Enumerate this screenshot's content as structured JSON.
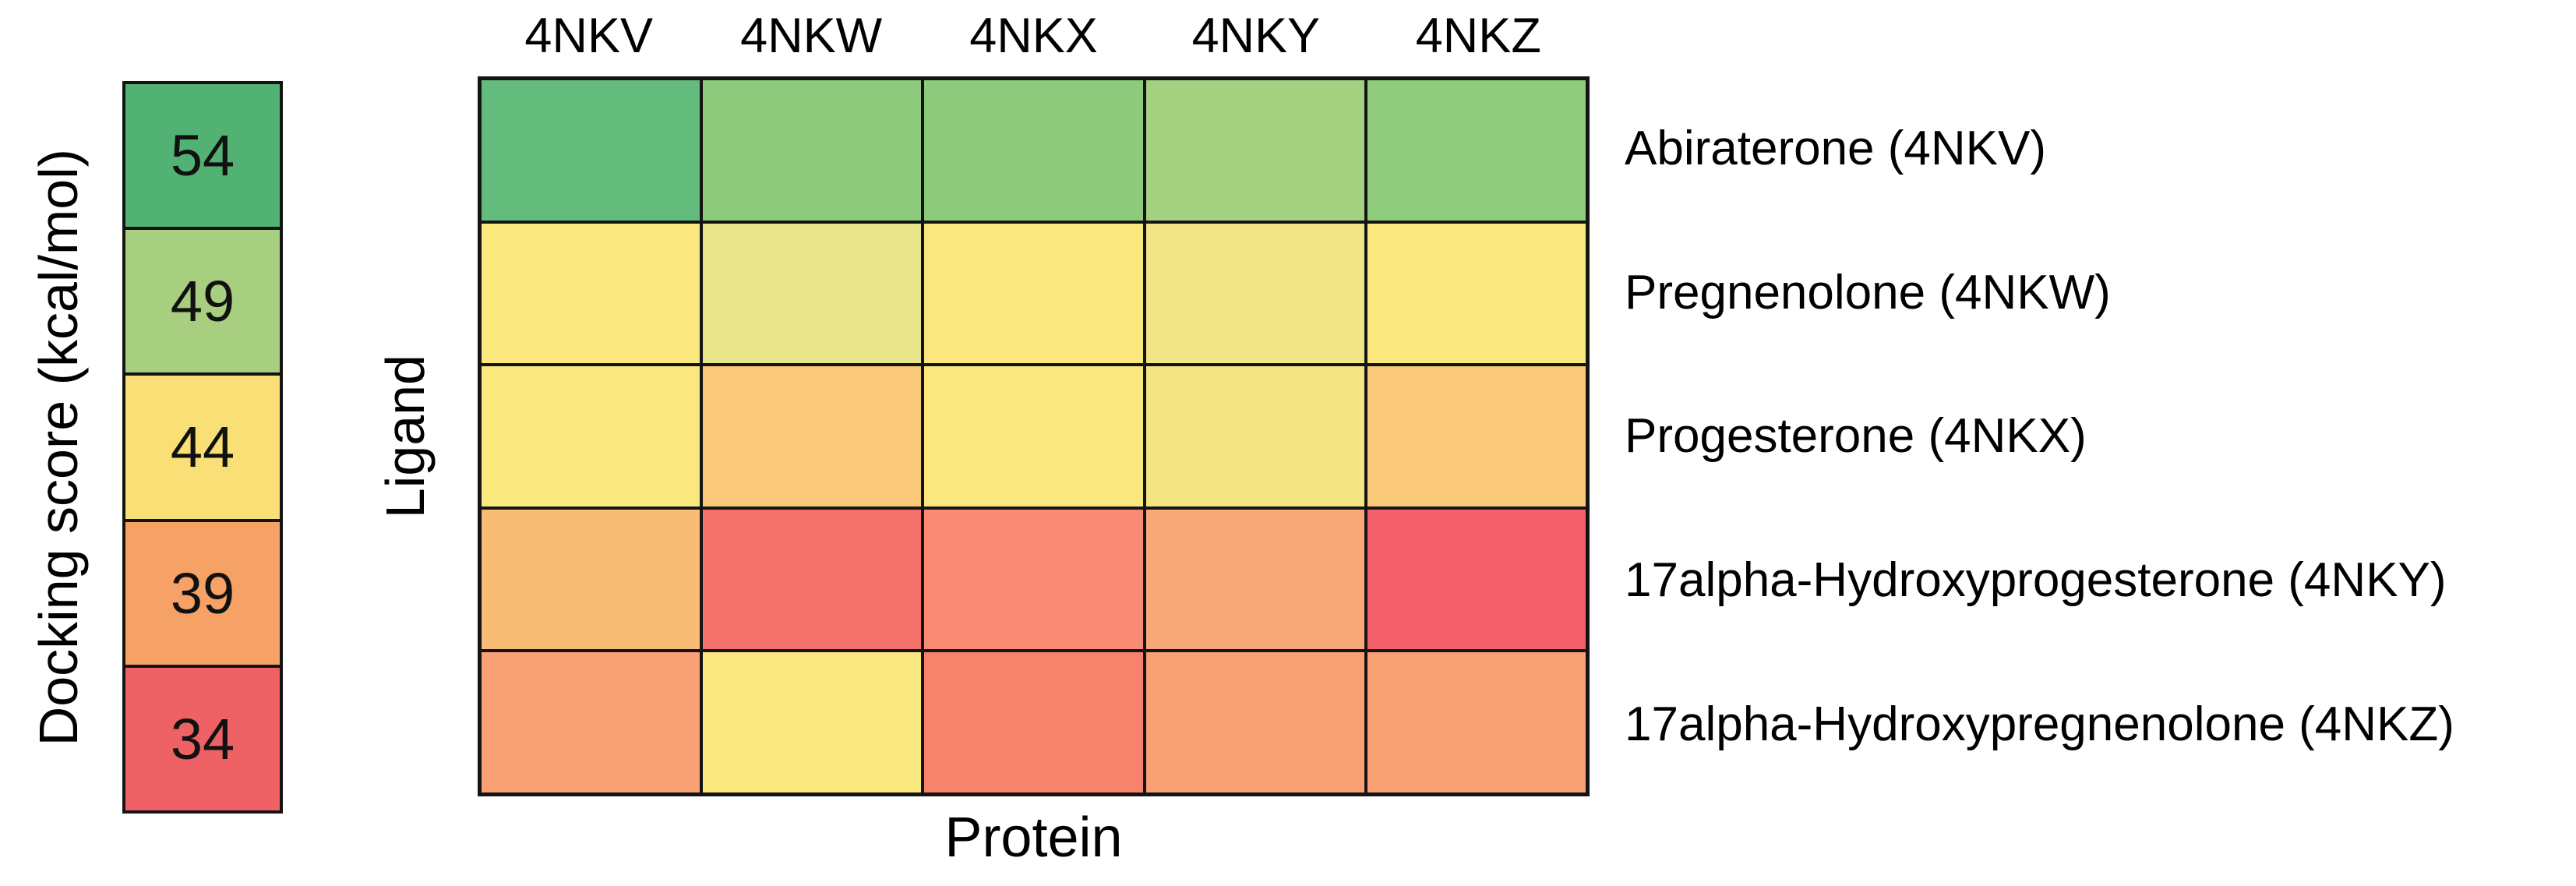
{
  "chart_data": {
    "type": "heatmap",
    "title": "",
    "xlabel": "Protein",
    "row_axis_label": "Ligand",
    "colorbar_label": "Docking score (kcal/mol)",
    "x_categories": [
      "4NKV",
      "4NKW",
      "4NKX",
      "4NKY",
      "4NKZ"
    ],
    "y_categories": [
      "Abiraterone (4NKV)",
      "Pregnenolone (4NKW)",
      "Progesterone (4NKX)",
      "17alpha-Hydroxyprogesterone (4NKY)",
      "17alpha-Hydroxypregnenolone (4NKZ)"
    ],
    "colorbar": {
      "position": "left",
      "tick_values": [
        "54",
        "49",
        "44",
        "39",
        "34"
      ],
      "tick_colors": [
        "#52B274",
        "#A8CE7F",
        "#FADF76",
        "#F6A266",
        "#EE6165"
      ]
    },
    "cell_colors": [
      [
        "#63BC7C",
        "#8DCA7B",
        "#8DCA7B",
        "#A3D180",
        "#8ECB7A"
      ],
      [
        "#FAE87E",
        "#E8E48A",
        "#FAE87E",
        "#F0E687",
        "#FAE87E"
      ],
      [
        "#FAE87E",
        "#F9C878",
        "#FAE87E",
        "#F4E584",
        "#F9C878"
      ],
      [
        "#F9BC74",
        "#F4716C",
        "#F98B74",
        "#F9A979",
        "#F4616C"
      ],
      [
        "#F9A175",
        "#FAE87E",
        "#F8836C",
        "#F9A175",
        "#F9A175"
      ]
    ],
    "approx_values_from_colorscale": [
      [
        52,
        50,
        50,
        49,
        50
      ],
      [
        44,
        46,
        44,
        45,
        44
      ],
      [
        44,
        41,
        44,
        45,
        41
      ],
      [
        41,
        35,
        37,
        39,
        34
      ],
      [
        39,
        44,
        36,
        39,
        39
      ]
    ],
    "grid_line_color": "#141414",
    "background_color": "#ffffff",
    "legend_position": "left"
  }
}
